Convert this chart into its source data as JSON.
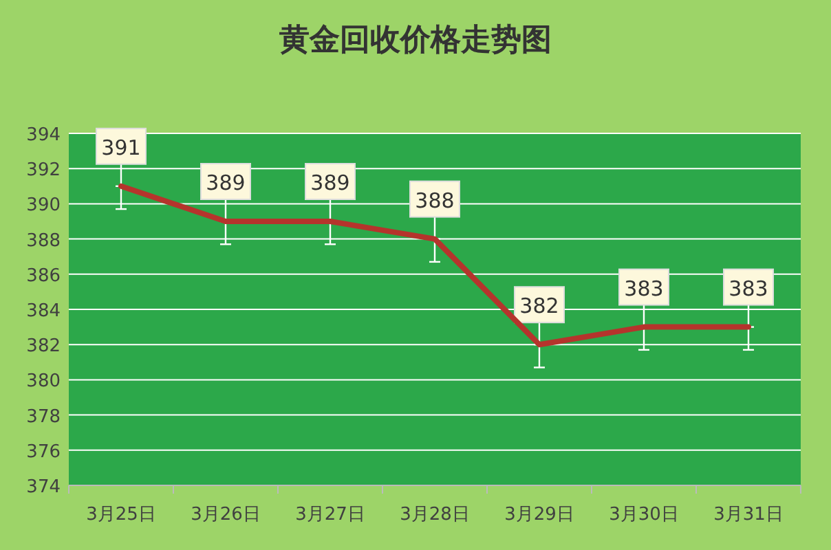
{
  "chart_data": {
    "type": "line",
    "title": "黄金回收价格走势图",
    "categories": [
      "3月25日",
      "3月26日",
      "3月27日",
      "3月28日",
      "3月29日",
      "3月30日",
      "3月31日"
    ],
    "values": [
      391,
      389,
      389,
      388,
      382,
      383,
      383
    ],
    "errors": [
      [
        389.7,
        391
      ],
      [
        387.7,
        389
      ],
      [
        387.7,
        389
      ],
      [
        386.7,
        388
      ],
      [
        380.7,
        382
      ],
      [
        381.7,
        383
      ],
      [
        381.7,
        383
      ]
    ],
    "color": "#b5342c",
    "ylim": [
      374,
      394
    ],
    "yticks": [
      374,
      376,
      378,
      380,
      382,
      384,
      386,
      388,
      390,
      392,
      394
    ],
    "grid": "y",
    "data_labels": true
  }
}
